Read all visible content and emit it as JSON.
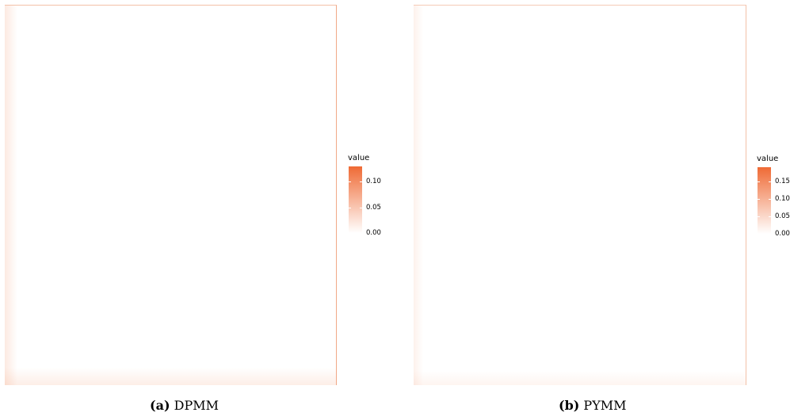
{
  "chart_data": [
    {
      "type": "heatmap",
      "caption_label": "(a)",
      "caption_text": "DPMM",
      "legend": {
        "title": "value",
        "placement": "right",
        "ticks": [
          "0.00",
          "0.05",
          "0.10"
        ],
        "range": [
          0,
          0.13
        ]
      },
      "color_scale": {
        "low": "#ffffff",
        "high": "#ef6a35"
      },
      "grid": false
    },
    {
      "type": "heatmap",
      "caption_label": "(b)",
      "caption_text": "PYMM",
      "legend": {
        "title": "value",
        "placement": "right",
        "ticks": [
          "0.00",
          "0.05",
          "0.10",
          "0.15"
        ],
        "range": [
          0,
          0.19
        ]
      },
      "color_scale": {
        "low": "#ffffff",
        "high": "#ef6a35"
      },
      "grid": false
    }
  ]
}
